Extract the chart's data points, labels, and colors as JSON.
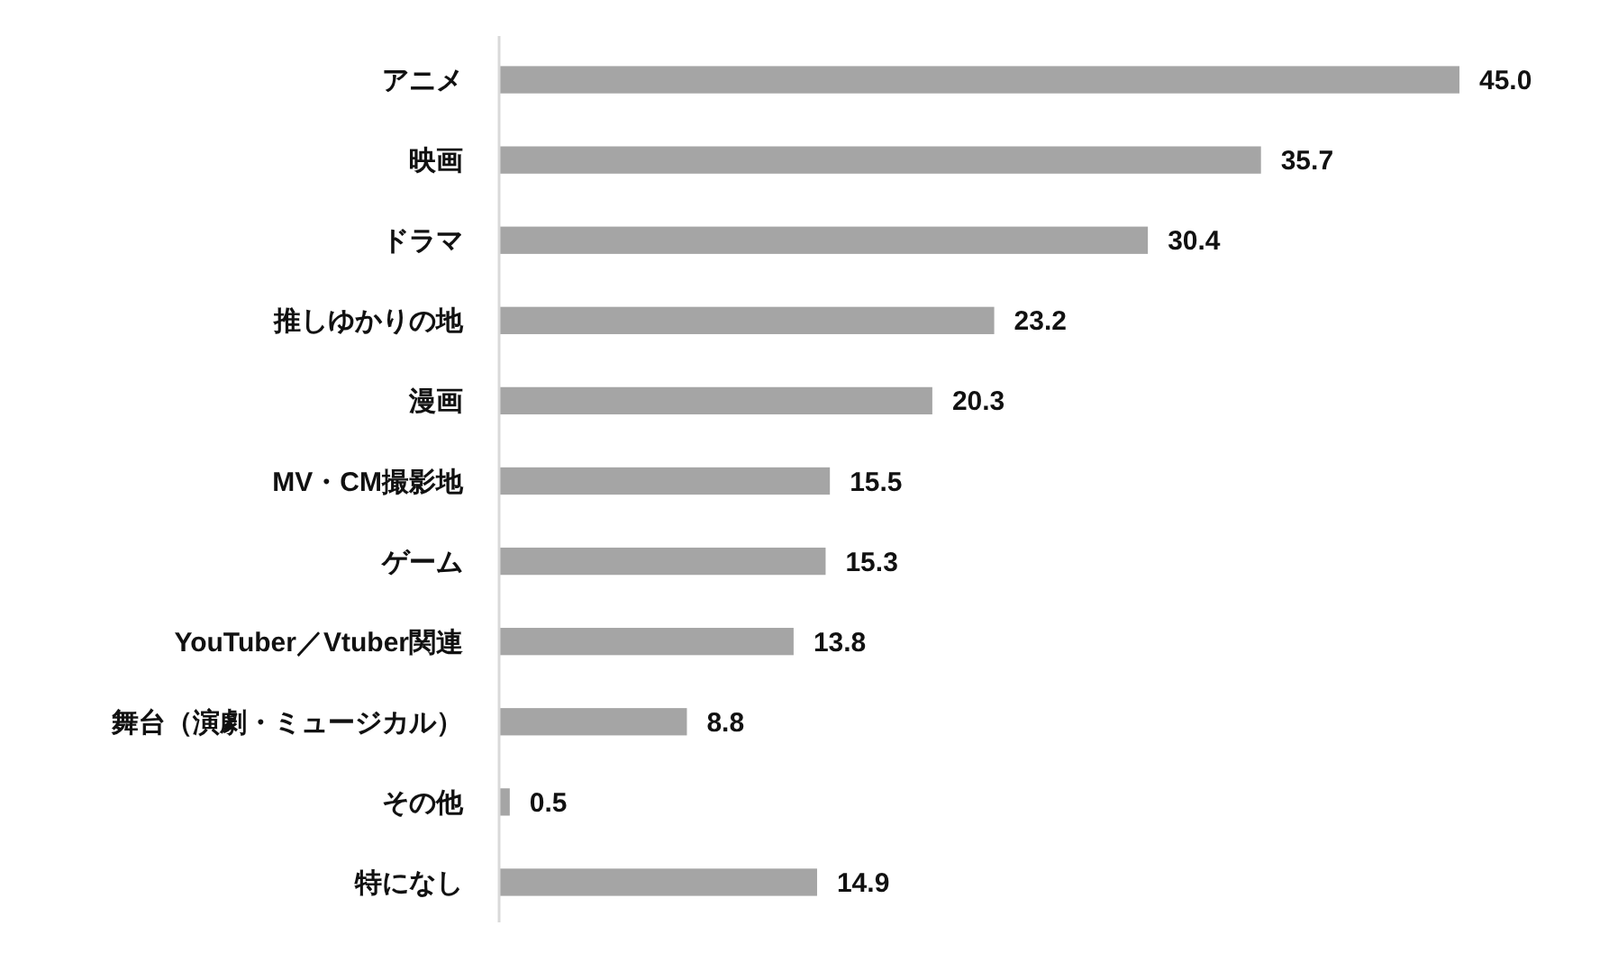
{
  "chart_data": {
    "type": "bar",
    "orientation": "horizontal",
    "categories": [
      "アニメ",
      "映画",
      "ドラマ",
      "推しゆかりの地",
      "漫画",
      "MV・CM撮影地",
      "ゲーム",
      "YouTuber／Vtuber関連",
      "舞台（演劇・ミュージカル）",
      "その他",
      "特になし"
    ],
    "values": [
      45.0,
      35.7,
      30.4,
      23.2,
      20.3,
      15.5,
      15.3,
      13.8,
      8.8,
      0.5,
      14.9
    ],
    "value_labels": [
      "45.0",
      "35.7",
      "30.4",
      "23.2",
      "20.3",
      "15.5",
      "15.3",
      "13.8",
      "8.8",
      "0.5",
      "14.9"
    ],
    "color": "#a5a5a5"
  }
}
